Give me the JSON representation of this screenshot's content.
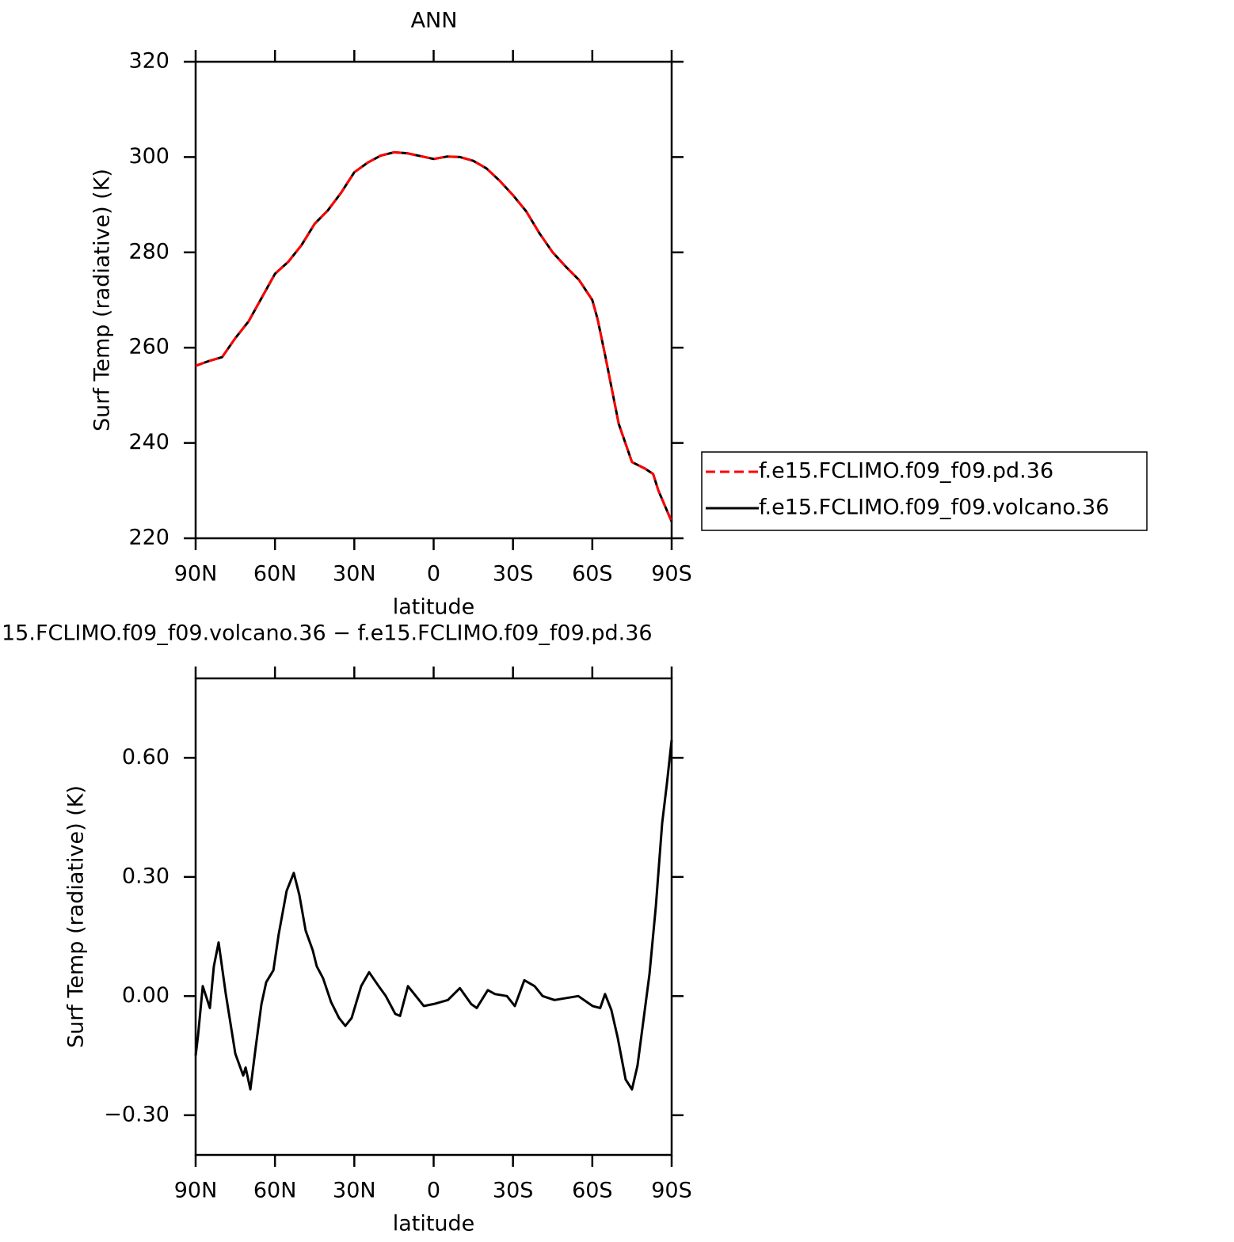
{
  "chart_data": [
    {
      "type": "line",
      "title": "ANN",
      "xlabel": "latitude",
      "ylabel": "Surf Temp (radiative) (K)",
      "x": [
        90,
        85,
        80,
        75,
        70,
        65,
        60,
        55,
        50,
        45,
        40,
        35,
        30,
        25,
        20,
        15,
        10,
        5,
        0,
        -5,
        -10,
        -15,
        -20,
        -25,
        -30,
        -35,
        -40,
        -45,
        -50,
        -55,
        -60,
        -62,
        -65,
        -70,
        -75,
        -80,
        -83,
        -85,
        -90
      ],
      "series": [
        {
          "name": "f.e15.FCLIMO.f09_f09.pd.36",
          "color": "#ff0000",
          "linestyle": "dashed",
          "values": [
            256.2,
            257.2,
            258.0,
            262,
            265.5,
            270.5,
            275.5,
            278,
            281.5,
            286,
            288.8,
            292.5,
            296.8,
            298.8,
            300.3,
            301,
            300.8,
            300.2,
            299.6,
            300.1,
            300.0,
            299.2,
            297.6,
            295,
            292,
            288.6,
            284,
            280,
            277,
            274.2,
            270,
            266,
            258,
            244,
            236,
            234.6,
            233.5,
            230,
            223.5
          ]
        },
        {
          "name": "f.e15.FCLIMO.f09_f09.volcano.36",
          "color": "#000000",
          "linestyle": "solid",
          "values": [
            256.2,
            257.2,
            258.0,
            262,
            265.5,
            270.5,
            275.5,
            278,
            281.5,
            286,
            288.8,
            292.5,
            296.8,
            298.8,
            300.3,
            301,
            300.8,
            300.2,
            299.6,
            300.1,
            300.0,
            299.2,
            297.6,
            295,
            292,
            288.6,
            284,
            280,
            277,
            274.2,
            270,
            266,
            258,
            244,
            236,
            234.6,
            233.5,
            230,
            223.5
          ]
        }
      ],
      "xlim": [
        90,
        -90
      ],
      "xticks": [
        {
          "value": 90,
          "label": "90N"
        },
        {
          "value": 60,
          "label": "60N"
        },
        {
          "value": 30,
          "label": "30N"
        },
        0,
        {
          "value": -30,
          "label": "30S"
        },
        {
          "value": -60,
          "label": "60S"
        },
        {
          "value": -90,
          "label": "90S"
        }
      ],
      "ylim": [
        220,
        320
      ],
      "yticks": [
        220,
        240,
        260,
        280,
        300,
        320
      ],
      "legend": "right"
    },
    {
      "type": "line",
      "title": "15.FCLIMO.f09_f09.volcano.36 − f.e15.FCLIMO.f09_f09.pd.36",
      "xlabel": "latitude",
      "ylabel": "Surf Temp (radiative) (K)",
      "x": [
        90,
        89.1,
        87.3,
        84.6,
        83.1,
        81.3,
        78.6,
        75,
        72,
        71.1,
        69.3,
        67.2,
        65.1,
        63.3,
        60.6,
        58.6,
        55.6,
        52.9,
        50.8,
        48.4,
        45.7,
        44.2,
        41.8,
        38.8,
        35.8,
        33.4,
        31,
        27.4,
        24.4,
        20.8,
        18.1,
        14.5,
        12.7,
        9.7,
        6.7,
        3.7,
        0,
        -5.4,
        -9.9,
        -14.2,
        -16.3,
        -20.5,
        -23.2,
        -27.7,
        -30.7,
        -34.3,
        -38.2,
        -41.2,
        -45.7,
        -54.7,
        -60.1,
        -63,
        -64.8,
        -67.2,
        -69.6,
        -72.6,
        -75,
        -77.1,
        -81.6,
        -84,
        -86.4,
        -88.2,
        -90
      ],
      "series": [
        {
          "color": "#000000",
          "linestyle": "solid",
          "values": [
            -0.15,
            -0.1,
            0.025,
            -0.03,
            0.075,
            0.135,
            0.005,
            -0.145,
            -0.2,
            -0.18,
            -0.235,
            -0.125,
            -0.02,
            0.035,
            0.065,
            0.155,
            0.265,
            0.31,
            0.255,
            0.165,
            0.115,
            0.075,
            0.045,
            -0.015,
            -0.055,
            -0.075,
            -0.055,
            0.025,
            0.06,
            0.025,
            0.0,
            -0.045,
            -0.05,
            0.025,
            0.0,
            -0.025,
            -0.02,
            -0.01,
            0.02,
            -0.02,
            -0.03,
            0.015,
            0.005,
            0.0,
            -0.025,
            0.04,
            0.025,
            0.0,
            -0.01,
            0.0,
            -0.025,
            -0.03,
            0.005,
            -0.035,
            -0.105,
            -0.21,
            -0.235,
            -0.175,
            0.055,
            0.225,
            0.435,
            0.535,
            0.645
          ]
        }
      ],
      "xlim": [
        90,
        -90
      ],
      "xticks": [
        {
          "value": 90,
          "label": "90N"
        },
        {
          "value": 60,
          "label": "60N"
        },
        {
          "value": 30,
          "label": "30N"
        },
        0,
        {
          "value": -30,
          "label": "30S"
        },
        {
          "value": -60,
          "label": "60S"
        },
        {
          "value": -90,
          "label": "90S"
        }
      ],
      "ylim": [
        -0.4,
        0.8
      ],
      "yticks": [
        {
          "value": -0.3,
          "label": "−0.30"
        },
        {
          "value": 0,
          "label": "0.00"
        },
        {
          "value": 0.3,
          "label": "0.30"
        },
        {
          "value": 0.6,
          "label": "0.60"
        }
      ]
    }
  ]
}
